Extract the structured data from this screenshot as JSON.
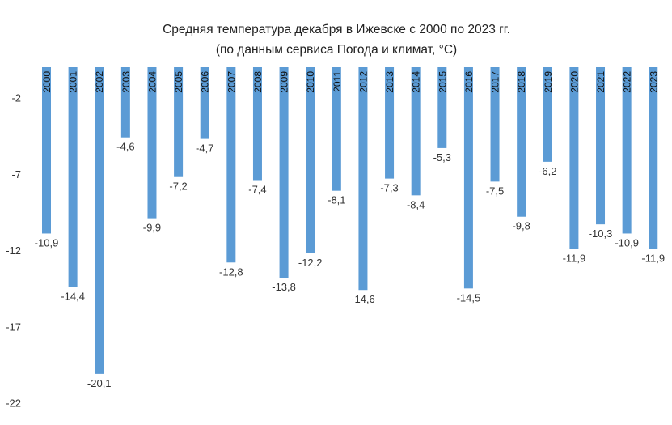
{
  "chart_data": {
    "type": "bar",
    "title_line1": "Средняя температура декабря в Ижевске с 2000 по 2023 гг.",
    "title_line2": "(по данным сервиса Погода и климат, °C)",
    "categories": [
      "2000",
      "2001",
      "2002",
      "2003",
      "2004",
      "2005",
      "2006",
      "2007",
      "2008",
      "2009",
      "2010",
      "2011",
      "2012",
      "2013",
      "2014",
      "2015",
      "2016",
      "2017",
      "2018",
      "2019",
      "2020",
      "2021",
      "2022",
      "2023"
    ],
    "values": [
      -10.9,
      -14.4,
      -20.1,
      -4.6,
      -9.9,
      -7.2,
      -4.7,
      -12.8,
      -7.4,
      -13.8,
      -12.2,
      -8.1,
      -14.6,
      -7.3,
      -8.4,
      -5.3,
      -14.5,
      -7.5,
      -9.8,
      -6.2,
      -11.9,
      -10.3,
      -10.9,
      -11.9
    ],
    "value_labels": [
      "-10,9",
      "-14,4",
      "-20,1",
      "-4,6",
      "-9,9",
      "-7,2",
      "-4,7",
      "-12,8",
      "-7,4",
      "-13,8",
      "-12,2",
      "-8,1",
      "-14,6",
      "-7,3",
      "-8,4",
      "-5,3",
      "-14,5",
      "-7,5",
      "-9,8",
      "-6,2",
      "-11,9",
      "-10,3",
      "-10,9",
      "-11,9"
    ],
    "y_ticks": [
      -2,
      -7,
      -12,
      -17,
      -22
    ],
    "y_tick_labels": [
      "-2",
      "-7",
      "-12",
      "-17",
      "-22"
    ],
    "ylim": [
      -22,
      0
    ],
    "grid": false,
    "legend": "none",
    "bar_color": "#5b9bd5"
  }
}
